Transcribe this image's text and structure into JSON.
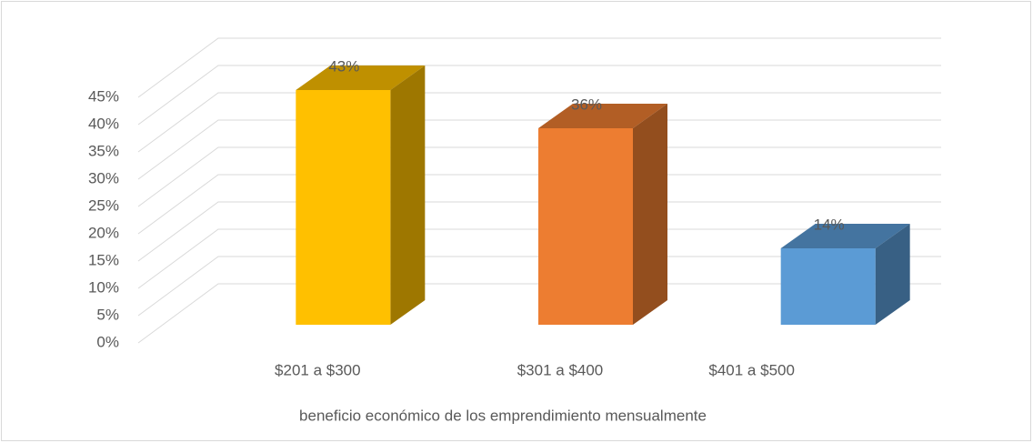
{
  "chart_data": {
    "type": "bar3d",
    "x_label": "beneficio económico de los emprendimiento mensualmente",
    "categories": [
      "$201 a $300",
      "$301 a $400",
      "$401 a $500"
    ],
    "values": [
      43,
      36,
      14
    ],
    "value_labels": [
      "43%",
      "36%",
      "14%"
    ],
    "colors": [
      "#FFC000",
      "#ED7D31",
      "#5B9BD5"
    ],
    "ylim": [
      0,
      45
    ],
    "yticks": [
      {
        "value": 0,
        "label": "0%"
      },
      {
        "value": 5,
        "label": "5%"
      },
      {
        "value": 10,
        "label": "10%"
      },
      {
        "value": 15,
        "label": "15%"
      },
      {
        "value": 20,
        "label": "20%"
      },
      {
        "value": 25,
        "label": "25%"
      },
      {
        "value": 30,
        "label": "30%"
      },
      {
        "value": 35,
        "label": "35%"
      },
      {
        "value": 40,
        "label": "40%"
      },
      {
        "value": 45,
        "label": "45%"
      }
    ],
    "grid": true
  }
}
